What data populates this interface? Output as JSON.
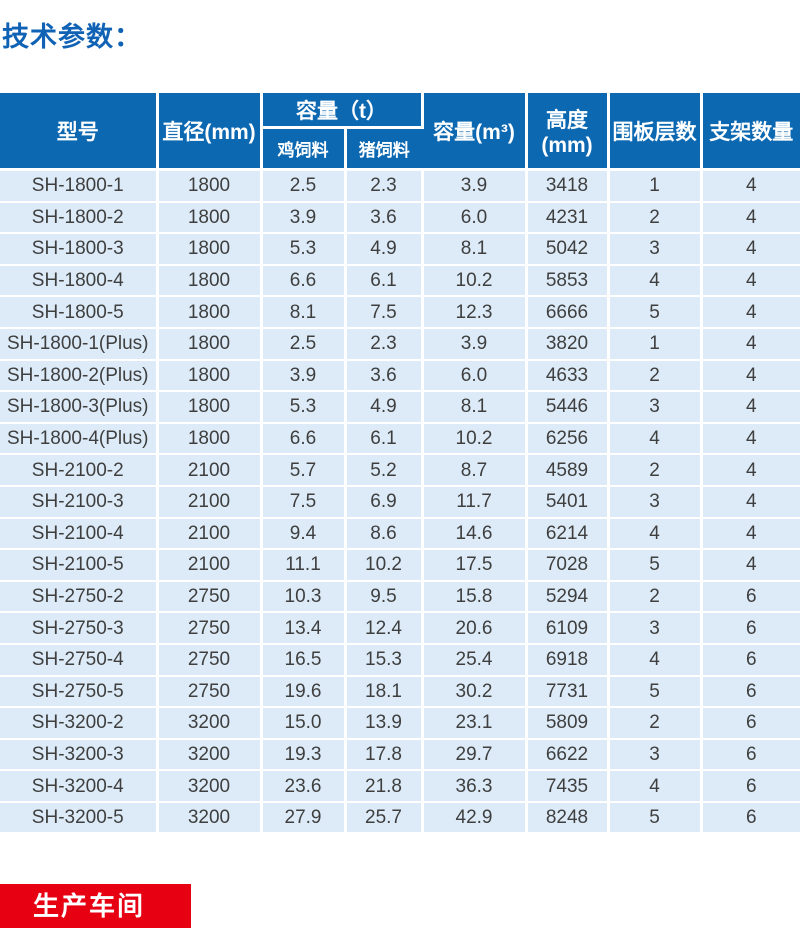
{
  "page": {
    "title": "技术参数：",
    "production_label": "生产车间"
  },
  "colors": {
    "header_blue": "#0d68b2",
    "row_blue": "#dcebf7",
    "title_blue": "#0f62b4",
    "accent_red": "#e60012",
    "body_text": "#3f3f3f"
  },
  "table": {
    "header": {
      "model": "型号",
      "diameter": "直径(mm)",
      "capacity_t": "容量（t）",
      "chicken_feed": "鸡饲料",
      "pig_feed": "猪饲料",
      "capacity_m3": "容量(m³)",
      "height": "高度(mm)",
      "panel_layers": "围板层数",
      "support_count": "支架数量"
    },
    "rows": [
      [
        "SH-1800-1",
        "1800",
        "2.5",
        "2.3",
        "3.9",
        "3418",
        "1",
        "4"
      ],
      [
        "SH-1800-2",
        "1800",
        "3.9",
        "3.6",
        "6.0",
        "4231",
        "2",
        "4"
      ],
      [
        "SH-1800-3",
        "1800",
        "5.3",
        "4.9",
        "8.1",
        "5042",
        "3",
        "4"
      ],
      [
        "SH-1800-4",
        "1800",
        "6.6",
        "6.1",
        "10.2",
        "5853",
        "4",
        "4"
      ],
      [
        "SH-1800-5",
        "1800",
        "8.1",
        "7.5",
        "12.3",
        "6666",
        "5",
        "4"
      ],
      [
        "SH-1800-1(Plus)",
        "1800",
        "2.5",
        "2.3",
        "3.9",
        "3820",
        "1",
        "4"
      ],
      [
        "SH-1800-2(Plus)",
        "1800",
        "3.9",
        "3.6",
        "6.0",
        "4633",
        "2",
        "4"
      ],
      [
        "SH-1800-3(Plus)",
        "1800",
        "5.3",
        "4.9",
        "8.1",
        "5446",
        "3",
        "4"
      ],
      [
        "SH-1800-4(Plus)",
        "1800",
        "6.6",
        "6.1",
        "10.2",
        "6256",
        "4",
        "4"
      ],
      [
        "SH-2100-2",
        "2100",
        "5.7",
        "5.2",
        "8.7",
        "4589",
        "2",
        "4"
      ],
      [
        "SH-2100-3",
        "2100",
        "7.5",
        "6.9",
        "11.7",
        "5401",
        "3",
        "4"
      ],
      [
        "SH-2100-4",
        "2100",
        "9.4",
        "8.6",
        "14.6",
        "6214",
        "4",
        "4"
      ],
      [
        "SH-2100-5",
        "2100",
        "11.1",
        "10.2",
        "17.5",
        "7028",
        "5",
        "4"
      ],
      [
        "SH-2750-2",
        "2750",
        "10.3",
        "9.5",
        "15.8",
        "5294",
        "2",
        "6"
      ],
      [
        "SH-2750-3",
        "2750",
        "13.4",
        "12.4",
        "20.6",
        "6109",
        "3",
        "6"
      ],
      [
        "SH-2750-4",
        "2750",
        "16.5",
        "15.3",
        "25.4",
        "6918",
        "4",
        "6"
      ],
      [
        "SH-2750-5",
        "2750",
        "19.6",
        "18.1",
        "30.2",
        "7731",
        "5",
        "6"
      ],
      [
        "SH-3200-2",
        "3200",
        "15.0",
        "13.9",
        "23.1",
        "5809",
        "2",
        "6"
      ],
      [
        "SH-3200-3",
        "3200",
        "19.3",
        "17.8",
        "29.7",
        "6622",
        "3",
        "6"
      ],
      [
        "SH-3200-4",
        "3200",
        "23.6",
        "21.8",
        "36.3",
        "7435",
        "4",
        "6"
      ],
      [
        "SH-3200-5",
        "3200",
        "27.9",
        "25.7",
        "42.9",
        "8248",
        "5",
        "6"
      ]
    ]
  }
}
